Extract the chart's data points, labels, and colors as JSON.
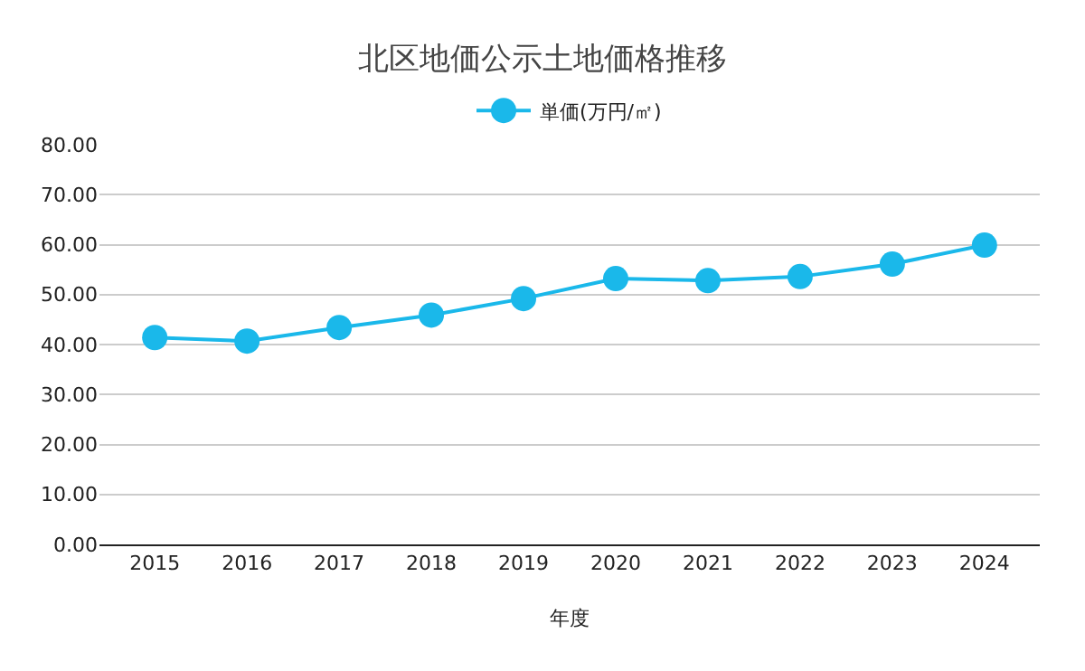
{
  "chart_data": {
    "type": "line",
    "title": "北区地価公示土地価格推移",
    "xlabel": "年度",
    "categories": [
      "2015",
      "2016",
      "2017",
      "2018",
      "2019",
      "2020",
      "2021",
      "2022",
      "2023",
      "2024"
    ],
    "series": [
      {
        "name": "単価(万円/㎡)",
        "color": "#1ab8ea",
        "values": [
          41.4,
          40.7,
          43.4,
          45.9,
          49.2,
          53.2,
          52.8,
          53.6,
          56.1,
          59.9
        ]
      }
    ],
    "ylim": [
      0,
      80
    ],
    "yticks": [
      {
        "value": 0,
        "label": "0.00"
      },
      {
        "value": 10,
        "label": "10.00"
      },
      {
        "value": 20,
        "label": "20.00"
      },
      {
        "value": 30,
        "label": "30.00"
      },
      {
        "value": 40,
        "label": "40.00"
      },
      {
        "value": 50,
        "label": "50.00"
      },
      {
        "value": 60,
        "label": "60.00"
      },
      {
        "value": 70,
        "label": "70.00"
      },
      {
        "value": 80,
        "label": "80.00"
      }
    ],
    "grid": "y",
    "legend": "top",
    "marker": "circle",
    "line_style": "solid"
  }
}
